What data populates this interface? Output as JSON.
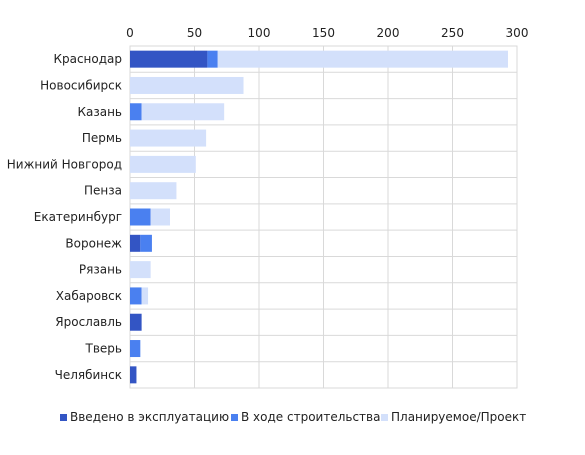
{
  "chart_data": {
    "type": "bar",
    "orientation": "horizontal",
    "stacked": true,
    "categories": [
      "Краснодар",
      "Новосибирск",
      "Казань",
      "Пермь",
      "Нижний Новгород",
      "Пенза",
      "Екатеринбург",
      "Воронеж",
      "Рязань",
      "Хабаровск",
      "Ярославль",
      "Тверь",
      "Челябинск"
    ],
    "series": [
      {
        "name": "Введено в эксплуатацию",
        "color": "#3355c4",
        "values": [
          60,
          0,
          0,
          0,
          0,
          0,
          0,
          8,
          0,
          0,
          9,
          0,
          5
        ]
      },
      {
        "name": "В ходе строительства",
        "color": "#4a80f0",
        "values": [
          8,
          0,
          9,
          0,
          0,
          0,
          16,
          9,
          0,
          9,
          0,
          8,
          0
        ]
      },
      {
        "name": "Планируемое/Проект",
        "color": "#d3e0fb",
        "values": [
          225,
          88,
          64,
          59,
          51,
          36,
          15,
          0,
          16,
          5,
          0,
          0,
          0
        ]
      }
    ],
    "xlim": [
      0,
      300
    ],
    "xticks": [
      "0",
      "50",
      "100",
      "150",
      "200",
      "250",
      "300"
    ],
    "grid": true,
    "legend_position": "bottom"
  }
}
